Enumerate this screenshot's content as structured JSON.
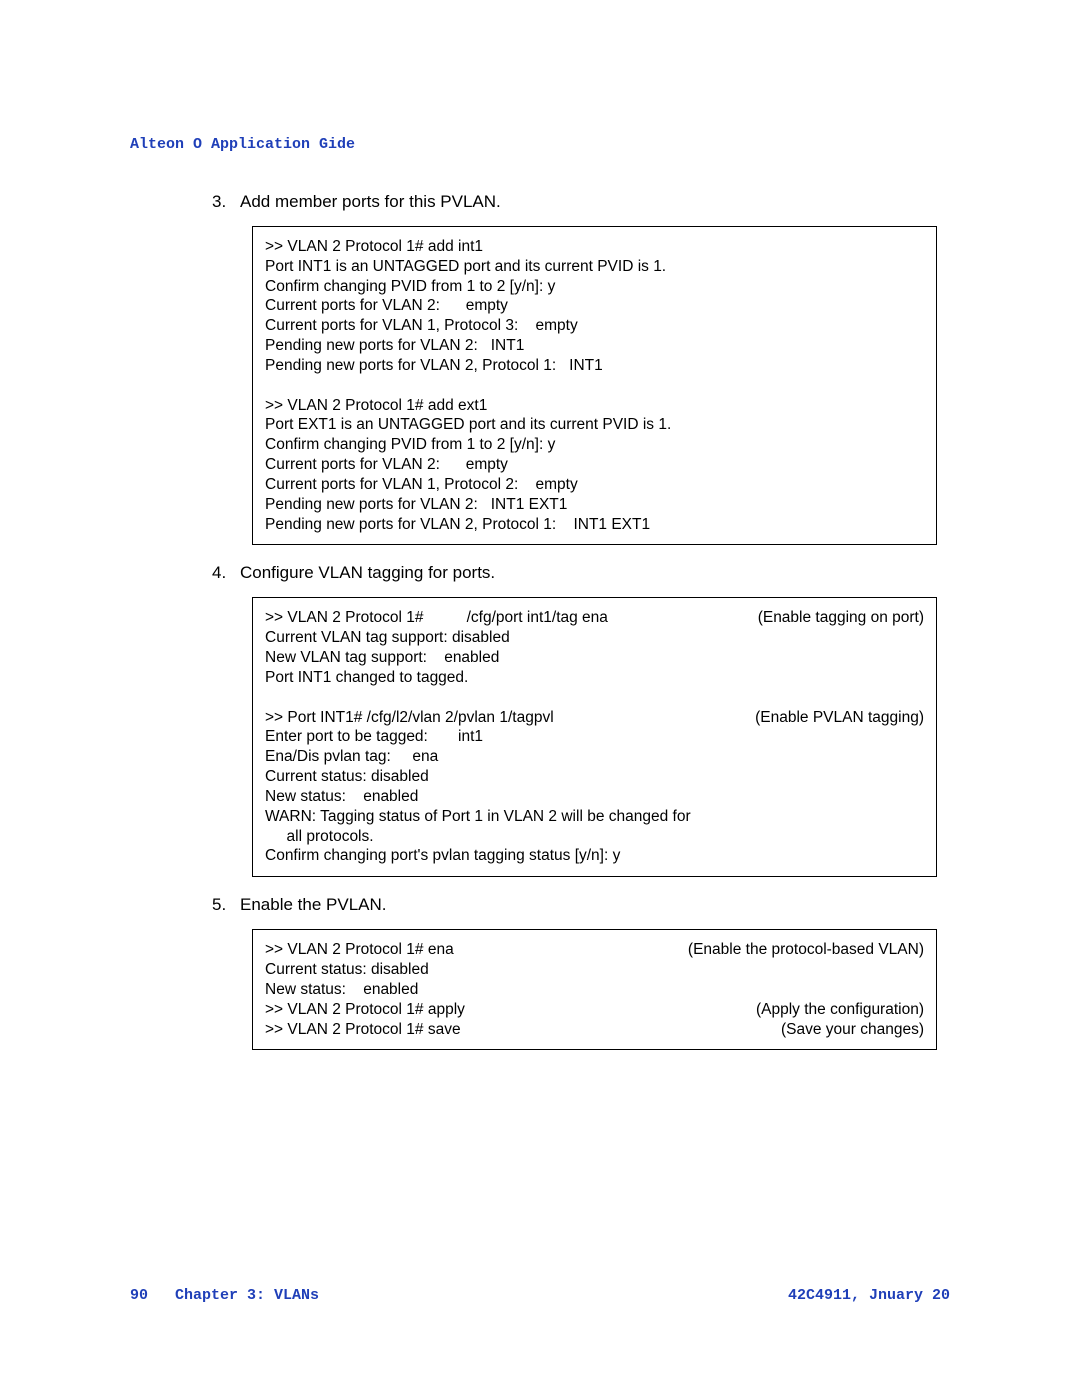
{
  "header": {
    "running_title": "Alteon  O  Application  Gide"
  },
  "steps": [
    {
      "num": "3.",
      "text": "Add member ports for this PVLAN.",
      "box": [
        {
          "left": ">> VLAN 2 Protocol 1# add int1"
        },
        {
          "left": "Port INT1 is an UNTAGGED port and its current PVID is 1."
        },
        {
          "left": "Confirm changing PVID from 1 to 2 [y/n]: y"
        },
        {
          "left": "Current ports for VLAN 2:      empty"
        },
        {
          "left": "Current ports for VLAN 1, Protocol 3:    empty"
        },
        {
          "left": "Pending new ports for VLAN 2:   INT1"
        },
        {
          "left": "Pending new ports for VLAN 2, Protocol 1:   INT1"
        },
        {
          "blank": true
        },
        {
          "left": ">> VLAN 2 Protocol 1# add ext1"
        },
        {
          "left": "Port EXT1 is an UNTAGGED port and its current PVID is 1."
        },
        {
          "left": "Confirm changing PVID from 1 to 2 [y/n]: y"
        },
        {
          "left": "Current ports for VLAN 2:      empty"
        },
        {
          "left": "Current ports for VLAN 1, Protocol 2:    empty"
        },
        {
          "left": "Pending new ports for VLAN 2:   INT1 EXT1"
        },
        {
          "left": "Pending new ports for VLAN 2, Protocol 1:    INT1 EXT1"
        }
      ]
    },
    {
      "num": "4.",
      "text": "Configure VLAN tagging for ports.",
      "box": [
        {
          "left": ">> VLAN 2 Protocol 1#          /cfg/port int1/tag ena",
          "right": "(Enable tagging on port)"
        },
        {
          "left": "Current VLAN tag support: disabled"
        },
        {
          "left": "New VLAN tag support:    enabled"
        },
        {
          "left": "Port INT1 changed to tagged."
        },
        {
          "blank": true
        },
        {
          "left": ">> Port INT1# /cfg/l2/vlan 2/pvlan 1/tagpvl",
          "right": "(Enable PVLAN tagging)"
        },
        {
          "left": "Enter port to be tagged:       int1"
        },
        {
          "left": "Ena/Dis pvlan tag:     ena"
        },
        {
          "left": "Current status: disabled"
        },
        {
          "left": "New status:    enabled"
        },
        {
          "left": "WARN: Tagging status of Port 1 in VLAN 2 will be changed for"
        },
        {
          "left": "     all protocols."
        },
        {
          "left": "Confirm changing port's pvlan tagging status [y/n]: y"
        }
      ]
    },
    {
      "num": "5.",
      "text": "Enable the PVLAN.",
      "box": [
        {
          "left": ">> VLAN 2 Protocol 1# ena",
          "right": "(Enable the protocol-based VLAN)"
        },
        {
          "left": "Current status: disabled"
        },
        {
          "left": "New status:    enabled"
        },
        {
          "left": ">> VLAN 2 Protocol 1# apply",
          "right": "(Apply the configuration)"
        },
        {
          "left": ">> VLAN 2 Protocol 1# save",
          "right": "(Save your changes)"
        }
      ]
    }
  ],
  "footer": {
    "page_number": "90",
    "chapter": "Chapter 3:  VLANs",
    "right": "42C4911, Jnuary 20"
  }
}
